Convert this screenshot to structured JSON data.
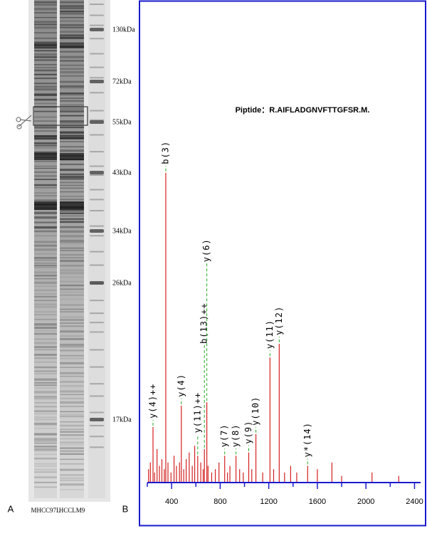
{
  "panels": {
    "a": "A",
    "b": "B"
  },
  "gel": {
    "lanes": [
      "MHCC97L",
      "HCCLM9"
    ],
    "markers": [
      "130kDa",
      "72kDa",
      "55kDa",
      "43kDa",
      "34kDa",
      "26kDa",
      "17kDa"
    ]
  },
  "chart_data": {
    "type": "spectrum",
    "title": "Piptide：R.AIFLADGNVFTTGFSR.M.",
    "x": [
      210,
      225,
      247,
      260,
      280,
      300,
      320,
      340,
      352,
      370,
      395,
      420,
      440,
      465,
      480,
      500,
      520,
      545,
      570,
      590,
      615,
      640,
      660,
      670,
      690,
      700,
      730,
      760,
      790,
      837,
      860,
      880,
      930,
      960,
      990,
      1035,
      1060,
      1094,
      1150,
      1210,
      1240,
      1286,
      1330,
      1380,
      1430,
      1520,
      1600,
      1720,
      1800,
      2050,
      2270
    ],
    "values": [
      4,
      6,
      16.6,
      3,
      10,
      5,
      7,
      4,
      92.6,
      6,
      3,
      8,
      5,
      6,
      23,
      4,
      7,
      9,
      5,
      11,
      8,
      6,
      4,
      10,
      24,
      5,
      3,
      4,
      6,
      8,
      3,
      5,
      8,
      4,
      3,
      9,
      4,
      14.5,
      3,
      37.4,
      4,
      41.5,
      3,
      5,
      3,
      5,
      4,
      6,
      2,
      3,
      2
    ],
    "peak_labels": [
      null,
      null,
      "y(4)++",
      null,
      null,
      null,
      null,
      null,
      "b(3)",
      null,
      null,
      null,
      null,
      null,
      "y(4)",
      null,
      null,
      null,
      null,
      null,
      "y(11)++",
      null,
      null,
      "b(13)++",
      "y(6)",
      null,
      null,
      null,
      null,
      "y(7)",
      null,
      null,
      "y(8)",
      null,
      null,
      "y(9)",
      null,
      "y(10)",
      null,
      "y(11)",
      null,
      "y(12)",
      null,
      null,
      null,
      "y*(14)",
      null,
      null,
      null,
      null,
      null
    ],
    "color": "#d42020",
    "label_color": "#22aa22",
    "axis_color": "#1a1acc",
    "xlim": [
      200,
      2450
    ],
    "ylim": [
      0,
      100
    ],
    "xticks": [
      400,
      800,
      1200,
      1600,
      2000,
      2400
    ],
    "xminor_ticks": [
      200,
      600,
      1000,
      1400,
      1800,
      2200
    ]
  }
}
